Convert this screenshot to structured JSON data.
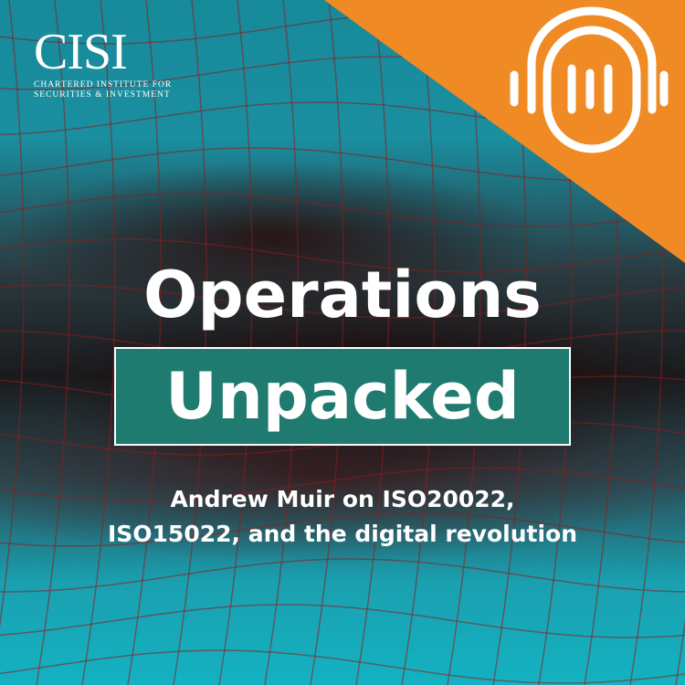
{
  "logo": {
    "name": "CISI",
    "subtitle_line1": "CHARTERED INSTITUTE FOR",
    "subtitle_line2": "SECURITIES & INVESTMENT"
  },
  "podcast_icon": "headphones-soundwave-icon",
  "title": {
    "line1": "Operations",
    "line2": "Unpacked"
  },
  "subtitle": {
    "line1": "Andrew Muir on ISO20022,",
    "line2": "ISO15022, and the digital revolution"
  },
  "colors": {
    "orange": "#f08a24",
    "teal_box": "#1f7b6f",
    "background_teal": "#1a9aac"
  }
}
